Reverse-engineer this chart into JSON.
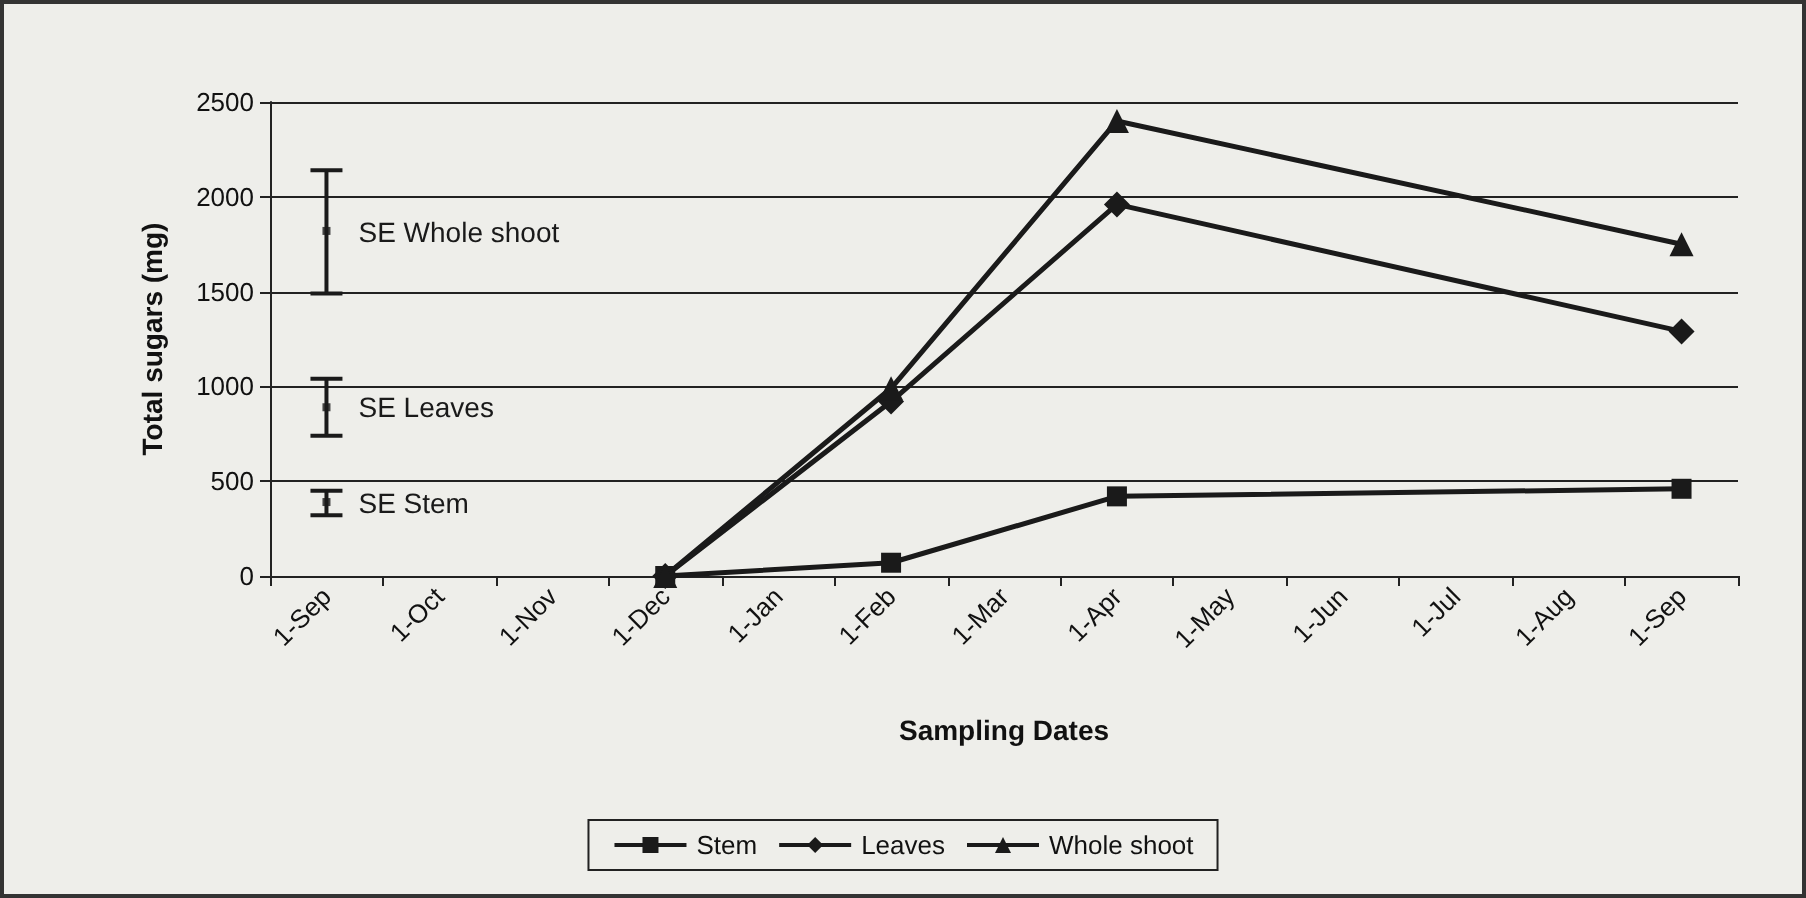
{
  "chart_data": {
    "type": "line",
    "xlabel": "Sampling Dates",
    "ylabel": "Total sugars (mg)",
    "categories": [
      "1-Sep",
      "1-Oct",
      "1-Nov",
      "1-Dec",
      "1-Jan",
      "1-Feb",
      "1-Mar",
      "1-Apr",
      "1-May",
      "1-Jun",
      "1-Jul",
      "1-Aug",
      "1-Sep"
    ],
    "series": [
      {
        "name": "Stem",
        "color": "#1a1a1a",
        "marker": "square",
        "values": [
          null,
          null,
          null,
          0,
          null,
          70,
          null,
          420,
          null,
          null,
          null,
          null,
          460
        ]
      },
      {
        "name": "Leaves",
        "color": "#1a1a1a",
        "marker": "diamond",
        "values": [
          null,
          null,
          null,
          0,
          null,
          920,
          null,
          1960,
          null,
          null,
          null,
          null,
          1290
        ]
      },
      {
        "name": "Whole shoot",
        "color": "#1a1a1a",
        "marker": "triangle",
        "values": [
          null,
          null,
          null,
          0,
          null,
          990,
          null,
          2400,
          null,
          null,
          null,
          null,
          1750
        ]
      },
      {
        "name": "SE Whole shoot",
        "type": "scatter",
        "marker": "square",
        "color": "#1a1a1a",
        "values": [
          1820,
          null,
          null,
          null,
          null,
          null,
          null,
          null,
          null,
          null,
          null,
          null,
          null
        ],
        "errors": [
          [
            1490,
            2140
          ],
          null,
          null,
          null,
          null,
          null,
          null,
          null,
          null,
          null,
          null,
          null,
          null
        ]
      },
      {
        "name": "SE Leaves",
        "type": "scatter",
        "marker": "square",
        "color": "#1a1a1a",
        "values": [
          890,
          null,
          null,
          null,
          null,
          null,
          null,
          null,
          null,
          null,
          null,
          null,
          null
        ],
        "errors": [
          [
            740,
            1040
          ],
          null,
          null,
          null,
          null,
          null,
          null,
          null,
          null,
          null,
          null,
          null,
          null
        ]
      },
      {
        "name": "SE Stem",
        "type": "scatter",
        "marker": "square",
        "color": "#1a1a1a",
        "values": [
          390,
          null,
          null,
          null,
          null,
          null,
          null,
          null,
          null,
          null,
          null,
          null,
          null
        ],
        "errors": [
          [
            320,
            450
          ],
          null,
          null,
          null,
          null,
          null,
          null,
          null,
          null,
          null,
          null,
          null,
          null
        ]
      }
    ],
    "ylim": [
      0,
      2500
    ],
    "yticks": [
      0,
      500,
      1000,
      1500,
      2000,
      2500
    ],
    "grid": "y",
    "legend": "bottom"
  }
}
